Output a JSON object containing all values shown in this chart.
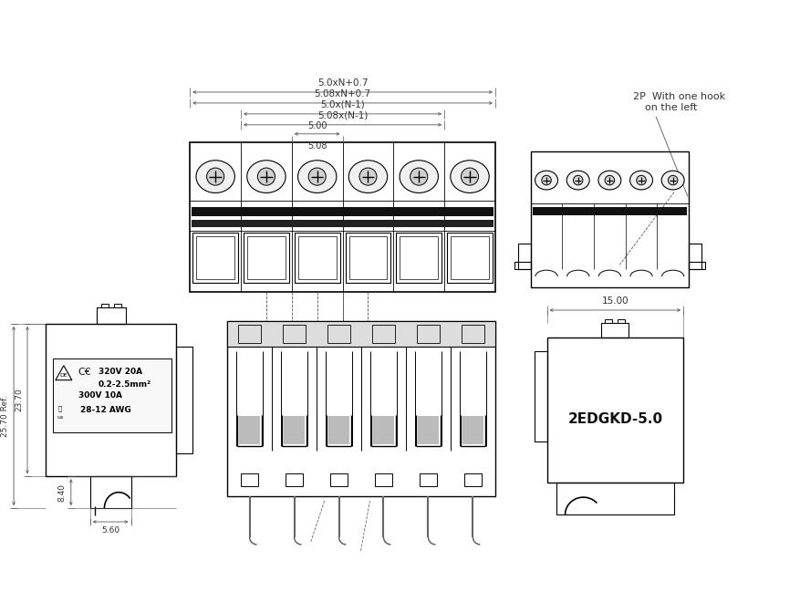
{
  "bg_color": "#ffffff",
  "line_color": "#000000",
  "annotations": {
    "dim1": "5.0xN+0.7",
    "dim2": "5.08xN+0.7",
    "dim3": "5.0x(N-1)",
    "dim4": "5.08x(N-1)",
    "dim5": "5.00",
    "dim6": "5.08",
    "note1": "2P  With one hook",
    "note2": "on the left",
    "dim_width": "15.00",
    "dim_h1": "25.70 Ref.",
    "dim_h2": "23.70",
    "dim_h3": "8.40",
    "dim_w2": "5.60",
    "label": "2EDGKD-5.0",
    "r1": "320V 20A",
    "r2": "0.2-2.5mm²",
    "r3": "300V 10A",
    "r4": "28-12 AWG"
  },
  "figsize": [
    8.77,
    6.72
  ],
  "dpi": 100
}
